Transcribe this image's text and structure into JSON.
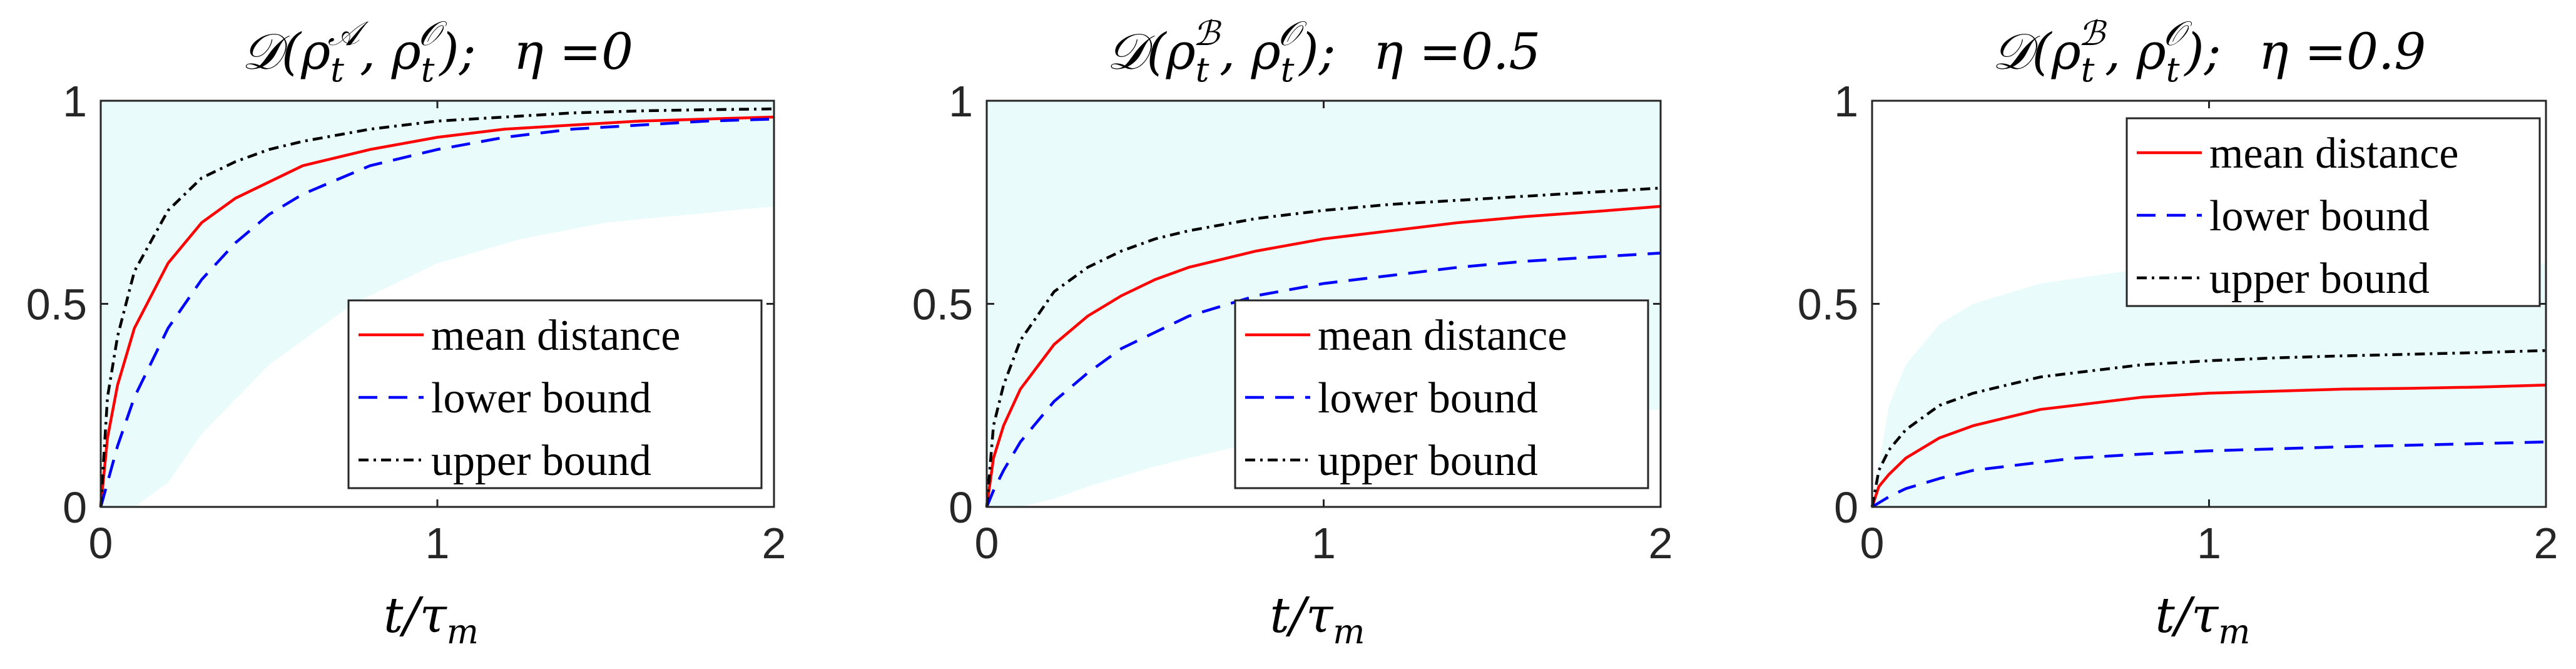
{
  "chart_data": [
    {
      "type": "line",
      "title": "𝒟(ρ_t^𝒜, ρ_t^𝒪);  η =0",
      "title_parts": {
        "D": "𝒟(",
        "rho1": "ρ",
        "sub1": "t",
        "sup1": "𝒜",
        "rho2": "ρ",
        "sub2": "t",
        "sup2": "𝒪",
        "close": ");",
        "eta": "η =0"
      },
      "xlabel": "t/τ",
      "xlabel_parts": {
        "t": "t/τ",
        "sub": "m"
      },
      "xlim": [
        0,
        2
      ],
      "ylim": [
        0,
        1
      ],
      "xticks": [
        "0",
        "1",
        "2"
      ],
      "yticks": [
        "0",
        "0.5",
        "1"
      ],
      "legend_position": "lower-right",
      "band_color": "#e9fbfb",
      "band": {
        "x": [
          0,
          0.05,
          0.1,
          0.2,
          0.3,
          0.5,
          0.75,
          1.0,
          1.25,
          1.5,
          1.75,
          2.0
        ],
        "upper": [
          1,
          1,
          1,
          1,
          1,
          1,
          1,
          1,
          1,
          1,
          1,
          1
        ],
        "lower": [
          0,
          0.0,
          0.0,
          0.06,
          0.18,
          0.35,
          0.5,
          0.6,
          0.66,
          0.7,
          0.72,
          0.74
        ]
      },
      "series": [
        {
          "name": "mean distance",
          "color": "#ff0000",
          "dash": "solid",
          "x": [
            0,
            0.02,
            0.05,
            0.1,
            0.2,
            0.3,
            0.4,
            0.5,
            0.6,
            0.8,
            1.0,
            1.2,
            1.4,
            1.6,
            1.8,
            2.0
          ],
          "y": [
            0,
            0.17,
            0.3,
            0.44,
            0.6,
            0.7,
            0.76,
            0.8,
            0.84,
            0.88,
            0.91,
            0.93,
            0.94,
            0.95,
            0.955,
            0.96
          ]
        },
        {
          "name": "lower bound",
          "color": "#0000ff",
          "dash": "dashed",
          "x": [
            0,
            0.02,
            0.05,
            0.1,
            0.2,
            0.3,
            0.4,
            0.5,
            0.6,
            0.8,
            1.0,
            1.2,
            1.4,
            1.6,
            1.8,
            2.0
          ],
          "y": [
            0,
            0.06,
            0.15,
            0.27,
            0.44,
            0.56,
            0.65,
            0.72,
            0.77,
            0.84,
            0.88,
            0.91,
            0.93,
            0.94,
            0.95,
            0.955
          ]
        },
        {
          "name": "upper bound",
          "color": "#000000",
          "dash": "dashdot",
          "x": [
            0,
            0.02,
            0.05,
            0.1,
            0.2,
            0.3,
            0.4,
            0.5,
            0.6,
            0.8,
            1.0,
            1.2,
            1.4,
            1.6,
            1.8,
            2.0
          ],
          "y": [
            0,
            0.27,
            0.42,
            0.58,
            0.73,
            0.81,
            0.85,
            0.88,
            0.9,
            0.93,
            0.95,
            0.96,
            0.97,
            0.975,
            0.978,
            0.98
          ]
        }
      ]
    },
    {
      "type": "line",
      "title": "𝒟(ρ_t^ℬ, ρ_t^𝒪);  η =0.5",
      "title_parts": {
        "D": "𝒟(",
        "rho1": "ρ",
        "sub1": "t",
        "sup1": "ℬ",
        "rho2": "ρ",
        "sub2": "t",
        "sup2": "𝒪",
        "close": ");",
        "eta": "η =0.5"
      },
      "xlabel": "t/τ",
      "xlabel_parts": {
        "t": "t/τ",
        "sub": "m"
      },
      "xlim": [
        0,
        2
      ],
      "ylim": [
        0,
        1
      ],
      "xticks": [
        "0",
        "1",
        "2"
      ],
      "yticks": [
        "0",
        "0.5",
        "1"
      ],
      "legend_position": "lower-right",
      "band_color": "#e9fbfb",
      "band": {
        "x": [
          0,
          0.05,
          0.1,
          0.2,
          0.3,
          0.5,
          0.75,
          1.0,
          1.25,
          1.5,
          1.75,
          2.0
        ],
        "upper": [
          1,
          1,
          1,
          1,
          1,
          1,
          1,
          1,
          1,
          1,
          1,
          1
        ],
        "lower": [
          0,
          0.0,
          0.0,
          0.02,
          0.05,
          0.1,
          0.15,
          0.18,
          0.2,
          0.22,
          0.23,
          0.24
        ]
      },
      "series": [
        {
          "name": "mean distance",
          "color": "#ff0000",
          "dash": "solid",
          "x": [
            0,
            0.02,
            0.05,
            0.1,
            0.2,
            0.3,
            0.4,
            0.5,
            0.6,
            0.8,
            1.0,
            1.2,
            1.4,
            1.6,
            1.8,
            2.0
          ],
          "y": [
            0,
            0.12,
            0.2,
            0.29,
            0.4,
            0.47,
            0.52,
            0.56,
            0.59,
            0.63,
            0.66,
            0.68,
            0.7,
            0.715,
            0.727,
            0.74
          ]
        },
        {
          "name": "lower bound",
          "color": "#0000ff",
          "dash": "dashed",
          "x": [
            0,
            0.02,
            0.05,
            0.1,
            0.2,
            0.3,
            0.4,
            0.5,
            0.6,
            0.8,
            1.0,
            1.2,
            1.4,
            1.6,
            1.8,
            2.0
          ],
          "y": [
            0,
            0.04,
            0.09,
            0.16,
            0.26,
            0.33,
            0.39,
            0.43,
            0.47,
            0.52,
            0.55,
            0.57,
            0.59,
            0.605,
            0.615,
            0.625
          ]
        },
        {
          "name": "upper bound",
          "color": "#000000",
          "dash": "dashdot",
          "x": [
            0,
            0.02,
            0.05,
            0.1,
            0.2,
            0.3,
            0.4,
            0.5,
            0.6,
            0.8,
            1.0,
            1.2,
            1.4,
            1.6,
            1.8,
            2.0
          ],
          "y": [
            0,
            0.2,
            0.3,
            0.41,
            0.53,
            0.59,
            0.63,
            0.66,
            0.68,
            0.71,
            0.73,
            0.745,
            0.755,
            0.765,
            0.775,
            0.785
          ]
        }
      ]
    },
    {
      "type": "line",
      "title": "𝒟(ρ_t^ℬ, ρ_t^𝒪);  η =0.9",
      "title_parts": {
        "D": "𝒟(",
        "rho1": "ρ",
        "sub1": "t",
        "sup1": "ℬ",
        "rho2": "ρ",
        "sub2": "t",
        "sup2": "𝒪",
        "close": ");",
        "eta": "η =0.9"
      },
      "xlabel": "t/τ",
      "xlabel_parts": {
        "t": "t/τ",
        "sub": "m"
      },
      "xlim": [
        0,
        2
      ],
      "ylim": [
        0,
        1
      ],
      "xticks": [
        "0",
        "1",
        "2"
      ],
      "yticks": [
        "0",
        "0.5",
        "1"
      ],
      "legend_position": "top-right",
      "band_color": "#e9fbfb",
      "band": {
        "x": [
          0,
          0.05,
          0.1,
          0.2,
          0.3,
          0.5,
          0.75,
          1.0,
          1.25,
          1.5,
          1.75,
          2.0
        ],
        "upper": [
          0,
          0.25,
          0.35,
          0.45,
          0.5,
          0.55,
          0.58,
          0.6,
          0.6,
          0.6,
          0.6,
          0.6
        ],
        "lower": [
          0,
          0,
          0,
          0,
          0,
          0,
          0,
          0,
          0,
          0,
          0,
          0
        ]
      },
      "series": [
        {
          "name": "mean distance",
          "color": "#ff0000",
          "dash": "solid",
          "x": [
            0,
            0.02,
            0.05,
            0.1,
            0.2,
            0.3,
            0.4,
            0.5,
            0.6,
            0.8,
            1.0,
            1.2,
            1.4,
            1.6,
            1.8,
            2.0
          ],
          "y": [
            0,
            0.05,
            0.08,
            0.12,
            0.17,
            0.2,
            0.22,
            0.24,
            0.25,
            0.27,
            0.28,
            0.285,
            0.29,
            0.292,
            0.295,
            0.3
          ]
        },
        {
          "name": "lower bound",
          "color": "#0000ff",
          "dash": "dashed",
          "x": [
            0,
            0.02,
            0.05,
            0.1,
            0.2,
            0.3,
            0.4,
            0.5,
            0.6,
            0.8,
            1.0,
            1.2,
            1.4,
            1.6,
            1.8,
            2.0
          ],
          "y": [
            0,
            0.01,
            0.025,
            0.045,
            0.07,
            0.09,
            0.1,
            0.11,
            0.12,
            0.13,
            0.138,
            0.143,
            0.148,
            0.152,
            0.156,
            0.16
          ]
        },
        {
          "name": "upper bound",
          "color": "#000000",
          "dash": "dashdot",
          "x": [
            0,
            0.02,
            0.05,
            0.1,
            0.2,
            0.3,
            0.4,
            0.5,
            0.6,
            0.8,
            1.0,
            1.2,
            1.4,
            1.6,
            1.8,
            2.0
          ],
          "y": [
            0,
            0.09,
            0.14,
            0.19,
            0.25,
            0.28,
            0.3,
            0.32,
            0.33,
            0.35,
            0.36,
            0.367,
            0.372,
            0.376,
            0.38,
            0.385
          ]
        }
      ]
    }
  ]
}
